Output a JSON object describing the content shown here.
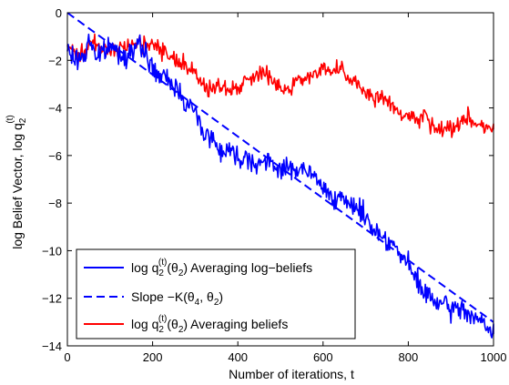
{
  "chart_data": {
    "type": "line",
    "title": "",
    "xlabel": "Number of iterations, t",
    "ylabel_parts": {
      "main": "log Belief Vector, log q",
      "sub": "2",
      "sup": "(t)"
    },
    "xlim": [
      0,
      1000
    ],
    "ylim": [
      -14,
      0
    ],
    "xticks": [
      0,
      200,
      400,
      600,
      800,
      1000
    ],
    "yticks": [
      -14,
      -12,
      -10,
      -8,
      -6,
      -4,
      -2,
      0
    ],
    "grid": false,
    "legend_position": "bottom-left",
    "colors": {
      "log_beliefs": "#0000ff",
      "slope": "#0000ff",
      "beliefs": "#ff0000",
      "axes": "#000000"
    },
    "legend": [
      {
        "parts": [
          "log q",
          "2",
          "(t)",
          "(θ",
          "2",
          ") Averaging log−beliefs"
        ],
        "style": "solid",
        "color": "#0000ff"
      },
      {
        "parts": [
          "Slope −K(θ",
          "4",
          ", θ",
          "2",
          ")"
        ],
        "style": "dashed",
        "color": "#0000ff"
      },
      {
        "parts": [
          "log q",
          "2",
          "(t)",
          "(θ",
          "2",
          ") Averaging beliefs"
        ],
        "style": "solid",
        "color": "#ff0000"
      }
    ],
    "series": [
      {
        "key": "log_beliefs",
        "color": "#0000ff",
        "dash": false,
        "noise": 0.32,
        "seed": 7,
        "x": [
          0,
          20,
          45,
          50,
          70,
          100,
          130,
          160,
          180,
          200,
          220,
          240,
          260,
          280,
          300,
          320,
          340,
          360,
          380,
          400,
          420,
          440,
          460,
          480,
          500,
          520,
          540,
          560,
          580,
          600,
          620,
          640,
          660,
          680,
          700,
          720,
          740,
          760,
          780,
          800,
          820,
          840,
          860,
          880,
          900,
          920,
          940,
          960,
          980,
          1000
        ],
        "y": [
          -1.6,
          -2.0,
          -1.7,
          -1.0,
          -1.9,
          -1.4,
          -1.8,
          -1.5,
          -1.5,
          -2.4,
          -2.7,
          -2.9,
          -3.2,
          -3.8,
          -4.2,
          -5.0,
          -5.3,
          -5.8,
          -5.7,
          -6.1,
          -6.0,
          -6.3,
          -6.3,
          -6.4,
          -6.5,
          -6.6,
          -6.5,
          -6.7,
          -6.9,
          -7.4,
          -7.6,
          -7.9,
          -8.1,
          -8.1,
          -8.6,
          -9.1,
          -9.4,
          -9.6,
          -10.2,
          -10.6,
          -11.3,
          -11.8,
          -12.1,
          -12.3,
          -12.5,
          -12.4,
          -12.6,
          -12.8,
          -13.2,
          -13.5
        ]
      },
      {
        "key": "slope",
        "color": "#0000ff",
        "dash": true,
        "noise": 0,
        "seed": 0,
        "x": [
          0,
          1000
        ],
        "y": [
          0,
          -13.0
        ]
      },
      {
        "key": "beliefs",
        "color": "#ff0000",
        "dash": false,
        "noise": 0.26,
        "seed": 11,
        "x": [
          0,
          30,
          60,
          100,
          150,
          200,
          240,
          270,
          300,
          320,
          340,
          360,
          380,
          400,
          420,
          440,
          460,
          480,
          500,
          520,
          540,
          560,
          580,
          600,
          620,
          640,
          660,
          680,
          700,
          720,
          740,
          760,
          780,
          800,
          820,
          840,
          860,
          880,
          900,
          920,
          940,
          960,
          980,
          1000
        ],
        "y": [
          -1.5,
          -1.7,
          -1.3,
          -1.6,
          -1.3,
          -1.4,
          -1.9,
          -2.0,
          -2.6,
          -3.1,
          -3.2,
          -3.1,
          -3.2,
          -3.1,
          -2.9,
          -2.6,
          -2.4,
          -2.7,
          -3.3,
          -3.1,
          -2.9,
          -2.7,
          -2.5,
          -2.3,
          -2.5,
          -2.4,
          -2.9,
          -3.0,
          -3.3,
          -3.6,
          -3.5,
          -3.9,
          -4.3,
          -4.3,
          -4.6,
          -4.3,
          -4.9,
          -5.0,
          -4.9,
          -4.8,
          -4.3,
          -4.6,
          -4.8,
          -4.9
        ]
      }
    ]
  }
}
